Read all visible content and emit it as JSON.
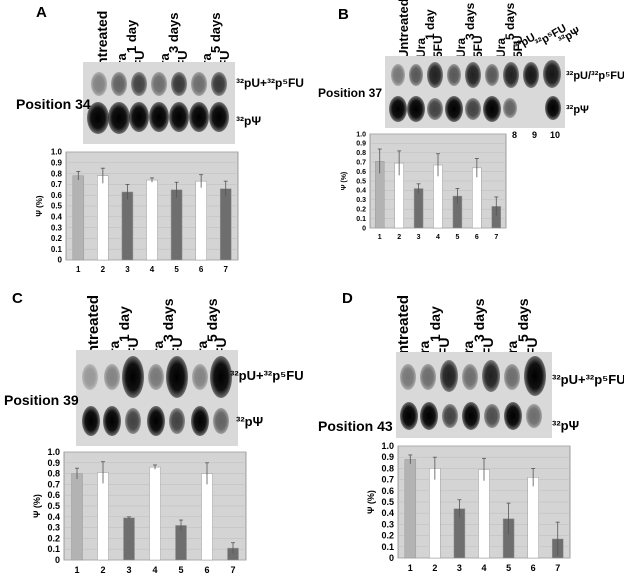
{
  "panels": {
    "A": {
      "label": "A",
      "position": "Position 34",
      "columns": [
        "Untreated",
        "Ura",
        "5FU",
        "Ura",
        "5FU",
        "Ura",
        "5FU"
      ],
      "groups": [
        "1 day",
        "3 days",
        "5 days"
      ],
      "spot_top": "³²pU+³²p⁵FU",
      "spot_bottom": "³²pΨ"
    },
    "B": {
      "label": "B",
      "position": "Position 37",
      "columns": [
        "Untreated",
        "Ura",
        "5FU",
        "Ura",
        "5FU",
        "Ura",
        "5FU"
      ],
      "groups": [
        "1 day",
        "3 days",
        "5 days"
      ],
      "extra_columns": [
        "³²pU",
        "³²p⁵FU",
        "³²pΨ"
      ],
      "extra_lanes": [
        "8",
        "9",
        "10"
      ],
      "spot_top": "³²pU/³²p⁵FU",
      "spot_bottom": "³²pΨ"
    },
    "C": {
      "label": "C",
      "position": "Position 39",
      "columns": [
        "Untreated",
        "Ura",
        "5FU",
        "Ura",
        "5FU",
        "Ura",
        "5FU"
      ],
      "groups": [
        "1 day",
        "3 days",
        "5 days"
      ],
      "spot_top": "³²pU+³²p⁵FU",
      "spot_bottom": "³²pΨ"
    },
    "D": {
      "label": "D",
      "position": "Position 43",
      "columns": [
        "Untreated",
        "Ura",
        "5FU",
        "Ura",
        "5FU",
        "Ura",
        "5FU"
      ],
      "groups": [
        "1 day",
        "3 days",
        "5 days"
      ],
      "spot_top": "³²pU+³²p⁵FU",
      "spot_bottom": "³²pΨ"
    }
  },
  "colors": {
    "untreated": "#b3b3b3",
    "ura": "#ffffff",
    "fu": "#6e6e6e",
    "plot_bg": "#d4d4d4"
  },
  "chart_data": [
    {
      "panel": "A",
      "type": "bar",
      "ylabel": "Ψ (%)",
      "ylim": [
        0,
        1.0
      ],
      "yticks": [
        "0",
        "0.1",
        "0.2",
        "0.3",
        "0.4",
        "0.5",
        "0.6",
        "0.7",
        "0.8",
        "0.9",
        "1.0"
      ],
      "categories": [
        "1",
        "2",
        "3",
        "4",
        "5",
        "6",
        "7"
      ],
      "values": [
        0.78,
        0.78,
        0.63,
        0.74,
        0.65,
        0.73,
        0.66
      ],
      "errors": [
        0.04,
        0.07,
        0.07,
        0.02,
        0.07,
        0.06,
        0.07
      ]
    },
    {
      "panel": "B",
      "type": "bar",
      "ylabel": "Ψ (%)",
      "ylim": [
        0,
        1.0
      ],
      "yticks": [
        "0",
        "0.1",
        "0.2",
        "0.3",
        "0.4",
        "0.5",
        "0.6",
        "0.7",
        "0.8",
        "0.9",
        "1.0"
      ],
      "categories": [
        "1",
        "2",
        "3",
        "4",
        "5",
        "6",
        "7"
      ],
      "values": [
        0.71,
        0.69,
        0.42,
        0.67,
        0.34,
        0.64,
        0.23
      ],
      "errors": [
        0.13,
        0.13,
        0.05,
        0.12,
        0.08,
        0.1,
        0.1
      ]
    },
    {
      "panel": "C",
      "type": "bar",
      "ylabel": "Ψ (%)",
      "ylim": [
        0,
        1.0
      ],
      "yticks": [
        "0",
        "0.1",
        "0.2",
        "0.3",
        "0.4",
        "0.5",
        "0.6",
        "0.7",
        "0.8",
        "0.9",
        "1.0"
      ],
      "categories": [
        "1",
        "2",
        "3",
        "4",
        "5",
        "6",
        "7"
      ],
      "values": [
        0.8,
        0.81,
        0.39,
        0.86,
        0.32,
        0.8,
        0.11
      ],
      "errors": [
        0.05,
        0.1,
        0.01,
        0.02,
        0.05,
        0.1,
        0.05
      ]
    },
    {
      "panel": "D",
      "type": "bar",
      "ylabel": "Ψ (%)",
      "ylim": [
        0,
        1.0
      ],
      "yticks": [
        "0",
        "0.1",
        "0.2",
        "0.3",
        "0.4",
        "0.5",
        "0.6",
        "0.7",
        "0.8",
        "0.9",
        "1.0"
      ],
      "categories": [
        "1",
        "2",
        "3",
        "4",
        "5",
        "6",
        "7"
      ],
      "values": [
        0.88,
        0.8,
        0.44,
        0.79,
        0.35,
        0.72,
        0.17
      ],
      "errors": [
        0.04,
        0.1,
        0.08,
        0.1,
        0.14,
        0.08,
        0.15
      ]
    }
  ]
}
